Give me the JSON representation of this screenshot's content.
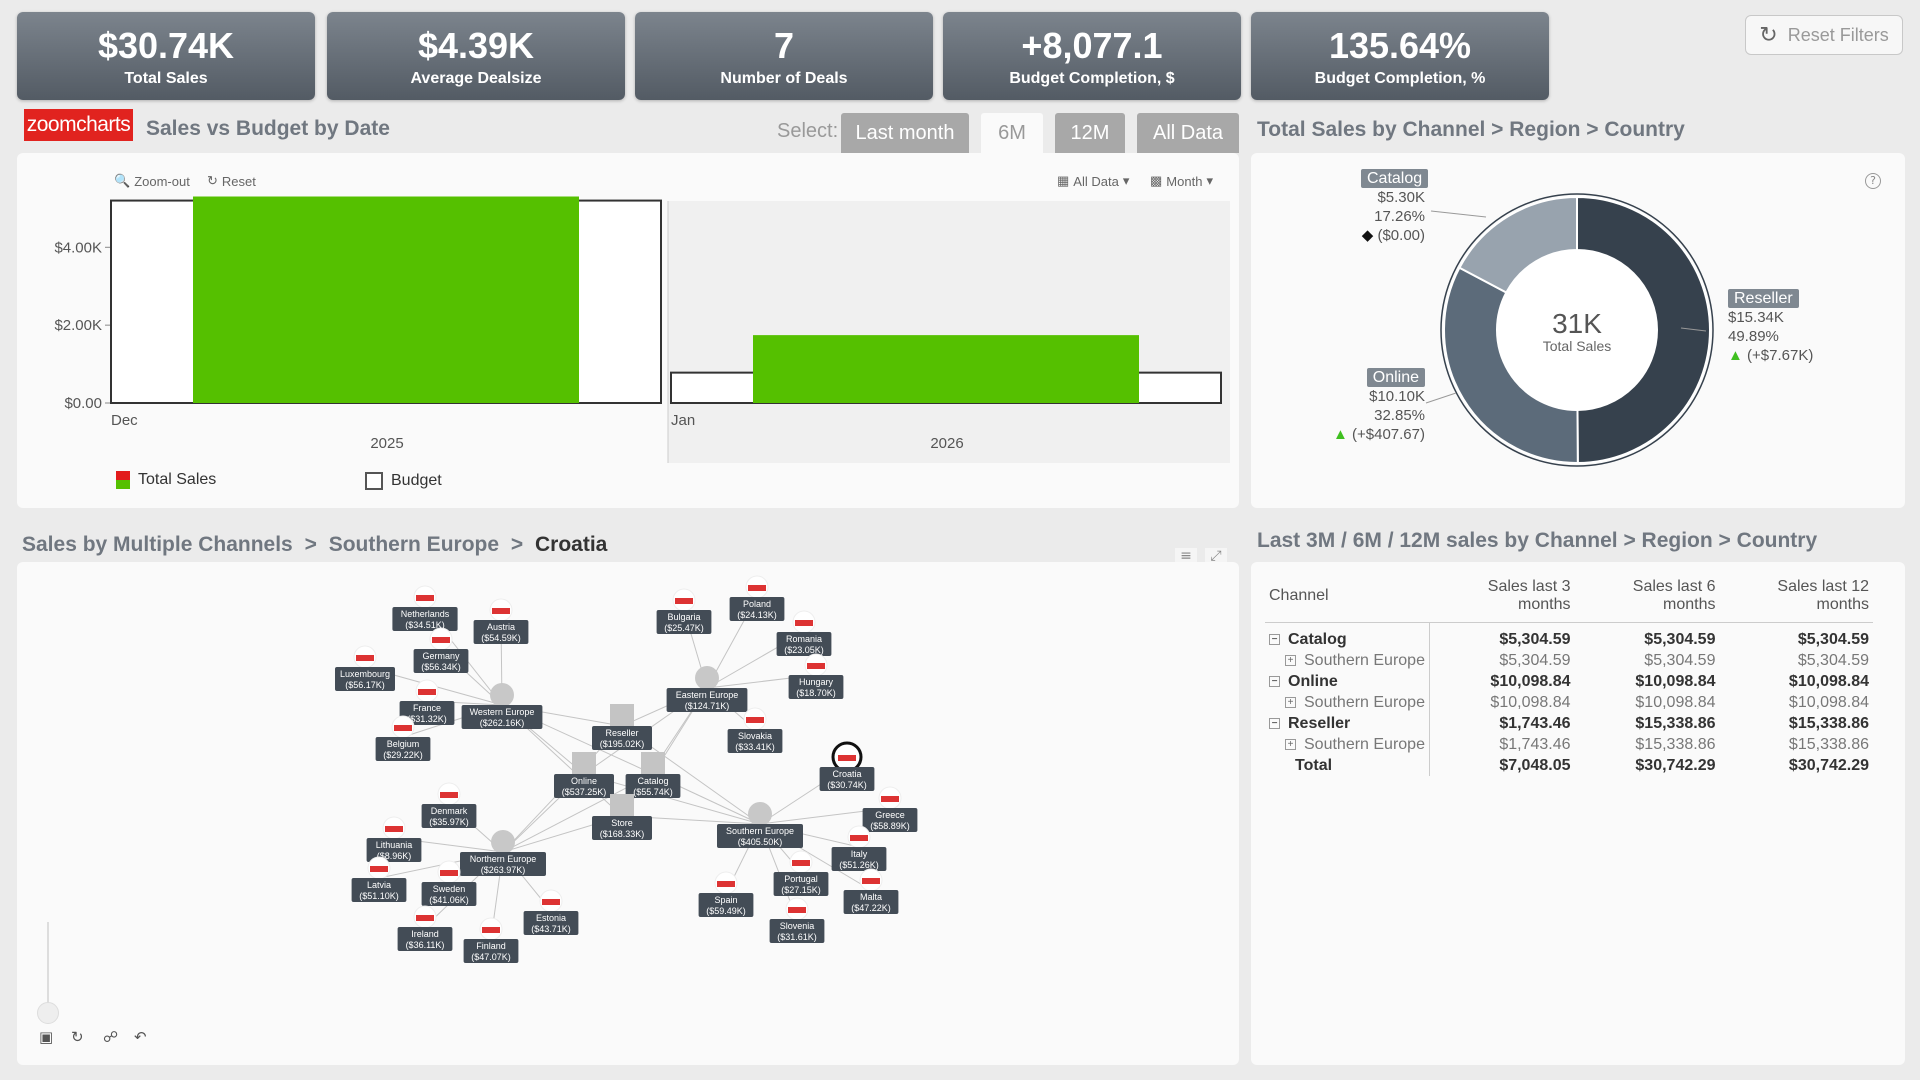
{
  "kpis": [
    {
      "value": "$30.74K",
      "label": "Total Sales"
    },
    {
      "value": "$4.39K",
      "label": "Average Dealsize"
    },
    {
      "value": "7",
      "label": "Number of Deals"
    },
    {
      "value": "+8,077.1",
      "label": "Budget Completion, $"
    },
    {
      "value": "135.64%",
      "label": "Budget Completion, %"
    }
  ],
  "reset_filters": "Reset Filters",
  "logo_text": "zoomcharts",
  "sales_budget": {
    "title": "Sales vs Budget by Date",
    "select_label": "Select:",
    "buttons": [
      "Last month",
      "6M",
      "12M",
      "All Data"
    ],
    "active_button": "6M",
    "zoom_out": "Zoom-out",
    "reset": "Reset",
    "all_data": "All Data",
    "month": "Month",
    "chart_data": {
      "type": "bar",
      "categories": [
        "Dec 2025",
        "Jan 2026"
      ],
      "series": [
        {
          "name": "Total Sales",
          "values": [
            5304.59,
            1743.46
          ],
          "color": "#55c000"
        },
        {
          "name": "Budget",
          "values": [
            5200,
            780
          ],
          "color": "#ffffff"
        }
      ],
      "y_ticks": [
        "$0.00",
        "$2.00K",
        "$4.00K"
      ],
      "ylim": [
        0,
        5600
      ],
      "month_labels": [
        "Dec",
        "Jan"
      ],
      "year_labels": [
        "2025",
        "2026"
      ]
    }
  },
  "channel_donut": {
    "title": "Total Sales by Channel > Region > Country",
    "center_value": "31K",
    "center_label": "Total Sales",
    "chart_data": {
      "type": "pie",
      "slices": [
        {
          "name": "Reseller",
          "value": 15.34,
          "display": "$15.34K",
          "pct": "49.89%",
          "delta": "(+$7.67K)",
          "color": "#36414d"
        },
        {
          "name": "Online",
          "value": 10.1,
          "display": "$10.10K",
          "pct": "32.85%",
          "delta": "(+$407.67)",
          "color": "#5c6b7a"
        },
        {
          "name": "Catalog",
          "value": 5.3,
          "display": "$5.30K",
          "pct": "17.26%",
          "delta": "($0.00)",
          "color": "#98a3ae"
        }
      ]
    },
    "help_icon": "?"
  },
  "network": {
    "breadcrumb": [
      "Sales by Multiple Channels",
      "Southern Europe",
      "Croatia"
    ],
    "sep": ">",
    "nodes": [
      {
        "name": "Netherlands",
        "value": "($34.51K)"
      },
      {
        "name": "Austria",
        "value": "($54.59K)"
      },
      {
        "name": "Germany",
        "value": "($56.34K)"
      },
      {
        "name": "Luxembourg",
        "value": "($56.17K)"
      },
      {
        "name": "France",
        "value": "($31.32K)"
      },
      {
        "name": "Belgium",
        "value": "($29.22K)"
      },
      {
        "name": "Western Europe",
        "value": "($262.16K)"
      },
      {
        "name": "Bulgaria",
        "value": "($25.47K)"
      },
      {
        "name": "Poland",
        "value": "($24.13K)"
      },
      {
        "name": "Romania",
        "value": "($23.05K)"
      },
      {
        "name": "Hungary",
        "value": "($18.70K)"
      },
      {
        "name": "Eastern Europe",
        "value": "($124.71K)"
      },
      {
        "name": "Slovakia",
        "value": "($33.41K)"
      },
      {
        "name": "Reseller",
        "value": "($195.02K)"
      },
      {
        "name": "Online",
        "value": "($537.25K)"
      },
      {
        "name": "Catalog",
        "value": "($55.74K)"
      },
      {
        "name": "Store",
        "value": "($168.33K)"
      },
      {
        "name": "Croatia",
        "value": "($30.74K)"
      },
      {
        "name": "Greece",
        "value": "($58.89K)"
      },
      {
        "name": "Southern Europe",
        "value": "($405.50K)"
      },
      {
        "name": "Italy",
        "value": "($51.26K)"
      },
      {
        "name": "Portugal",
        "value": "($27.15K)"
      },
      {
        "name": "Malta",
        "value": "($47.22K)"
      },
      {
        "name": "Spain",
        "value": "($59.49K)"
      },
      {
        "name": "Slovenia",
        "value": "($31.61K)"
      },
      {
        "name": "Denmark",
        "value": "($35.97K)"
      },
      {
        "name": "Lithuania",
        "value": "($8.96K)"
      },
      {
        "name": "Northern Europe",
        "value": "($263.97K)"
      },
      {
        "name": "Latvia",
        "value": "($51.10K)"
      },
      {
        "name": "Sweden",
        "value": "($41.06K)"
      },
      {
        "name": "Estonia",
        "value": "($43.71K)"
      },
      {
        "name": "Ireland",
        "value": "($36.11K)"
      },
      {
        "name": "Finland",
        "value": "($47.07K)"
      }
    ]
  },
  "sales_table": {
    "title": "Last 3M / 6M / 12M sales by Channel > Region > Country",
    "headers": [
      "Channel",
      "Sales last 3 months",
      "Sales last 6 months",
      "Sales last 12 months"
    ],
    "rows": [
      {
        "label": "Catalog",
        "v": [
          "$5,304.59",
          "$5,304.59",
          "$5,304.59"
        ]
      },
      {
        "label": "Southern Europe",
        "v": [
          "$5,304.59",
          "$5,304.59",
          "$5,304.59"
        ]
      },
      {
        "label": "Online",
        "v": [
          "$10,098.84",
          "$10,098.84",
          "$10,098.84"
        ]
      },
      {
        "label": "Southern Europe",
        "v": [
          "$10,098.84",
          "$10,098.84",
          "$10,098.84"
        ]
      },
      {
        "label": "Reseller",
        "v": [
          "$1,743.46",
          "$15,338.86",
          "$15,338.86"
        ]
      },
      {
        "label": "Southern Europe",
        "v": [
          "$1,743.46",
          "$15,338.86",
          "$15,338.86"
        ]
      },
      {
        "label": "Total",
        "v": [
          "$7,048.05",
          "$30,742.29",
          "$30,742.29"
        ]
      }
    ]
  }
}
